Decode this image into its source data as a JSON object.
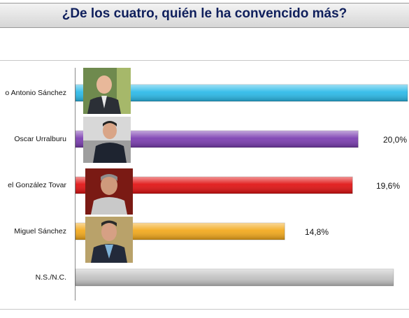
{
  "title": "¿De los cuatro, quién le ha convencido más?",
  "chart_data": {
    "type": "bar",
    "orientation": "horizontal",
    "title": "¿De los cuatro, quién le ha convencido más?",
    "xlabel": "",
    "ylabel": "",
    "categories": [
      "o Antonio Sánchez",
      "Oscar Urralburu",
      "el González Tovar",
      "Miguel Sánchez",
      "N.S./N.C."
    ],
    "values": [
      23.5,
      20.0,
      19.6,
      14.8,
      22.5
    ],
    "value_labels": [
      "",
      "20,0%",
      "19,6%",
      "14,8%",
      ""
    ],
    "colors": [
      "#29b9e8",
      "#7a3cb0",
      "#e01010",
      "#f2a81a",
      "#c2c2c2"
    ],
    "xlim": [
      0,
      23.5
    ],
    "grid": false,
    "legend": "none"
  }
}
